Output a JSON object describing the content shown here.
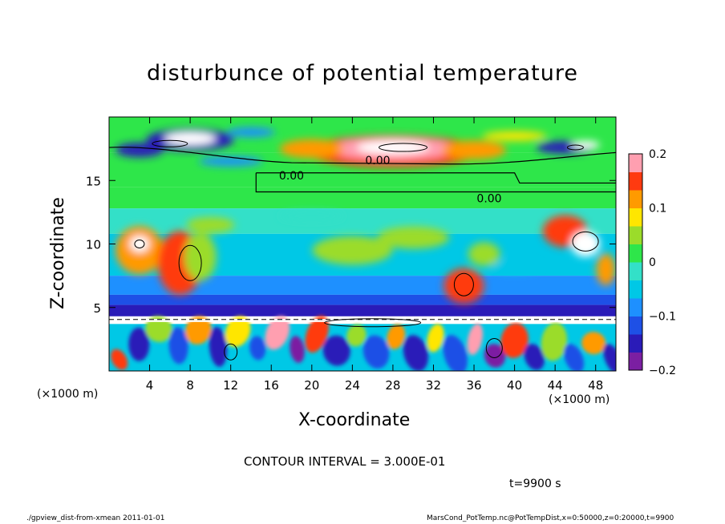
{
  "colors": {
    "scale": [
      "#7b1fa2",
      "#2a1bb8",
      "#1e50e6",
      "#1e90ff",
      "#00c8e6",
      "#33e0c8",
      "#2ee64a",
      "#9bdc2a",
      "#ffe600",
      "#ff9a00",
      "#ff3a10",
      "#ff9fb0"
    ],
    "background": "#ffffff",
    "line": "#000000",
    "zero_band": "#22e040",
    "dark_band": "#1010c8"
  },
  "chart_data": {
    "type": "heatmap",
    "title": "disturbunce of potential temperature",
    "xlabel": "X-coordinate",
    "ylabel": "Z-coordinate",
    "x_unit_left": "(×1000 m)",
    "x_unit_right": "(×1000 m)",
    "xlim": [
      0,
      50
    ],
    "ylim": [
      0,
      20
    ],
    "x_ticks": [
      4,
      8,
      12,
      16,
      20,
      24,
      28,
      32,
      36,
      40,
      44,
      48
    ],
    "x_tick_labels": [
      "4",
      "8",
      "12",
      "16",
      "20",
      "24",
      "28",
      "32",
      "36",
      "40",
      "44",
      "48"
    ],
    "y_ticks": [
      5,
      10,
      15
    ],
    "y_tick_labels": [
      "5",
      "10",
      "15"
    ],
    "colorbar": {
      "range": [
        -0.2,
        0.2
      ],
      "ticks": [
        0.2,
        0.1,
        0,
        -0.1,
        -0.2
      ],
      "tick_labels": [
        "0.2",
        "0.1",
        "0",
        "−0.1",
        "−0.2"
      ]
    },
    "contour_labels": [
      {
        "text": "0.00",
        "x": 26.5,
        "z": 16.6
      },
      {
        "text": "0.00",
        "x": 18.0,
        "z": 15.4
      },
      {
        "text": "0.00",
        "x": 37.5,
        "z": 13.6
      }
    ],
    "contour_interval_text": "CONTOUR INTERVAL = 3.000E-01",
    "time_text": "t=9900 s",
    "footer_left": "./gpview_dist-from-xmean  2011-01-01",
    "footer_right": "MarsCond_PotTemp.nc@PotTempDist,x=0:50000,z=0:20000,t=9900"
  }
}
